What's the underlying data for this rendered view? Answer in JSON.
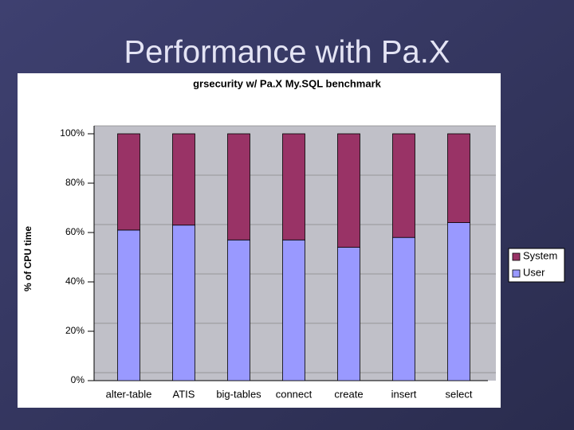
{
  "slide": {
    "title": "Performance with Pa.X"
  },
  "chart_data": {
    "type": "stacked_bar",
    "title": "grsecurity w/ Pa.X My.SQL benchmark",
    "y_label": "% of CPU time",
    "categories": [
      "alter-table",
      "ATIS",
      "big-tables",
      "connect",
      "create",
      "insert",
      "select"
    ],
    "series": [
      {
        "name": "User",
        "color": "#9999ff",
        "values": [
          61,
          63,
          57,
          57,
          54,
          58,
          64
        ]
      },
      {
        "name": "System",
        "color": "#993366",
        "values": [
          39,
          37,
          43,
          43,
          46,
          42,
          36
        ]
      }
    ],
    "ylim": [
      0,
      100
    ],
    "yticks": [
      {
        "value": 0,
        "label": "0%"
      },
      {
        "value": 20,
        "label": "20%"
      },
      {
        "value": 40,
        "label": "40%"
      },
      {
        "value": 60,
        "label": "60%"
      },
      {
        "value": 80,
        "label": "80%"
      },
      {
        "value": 100,
        "label": "100%"
      }
    ],
    "grid": true
  }
}
